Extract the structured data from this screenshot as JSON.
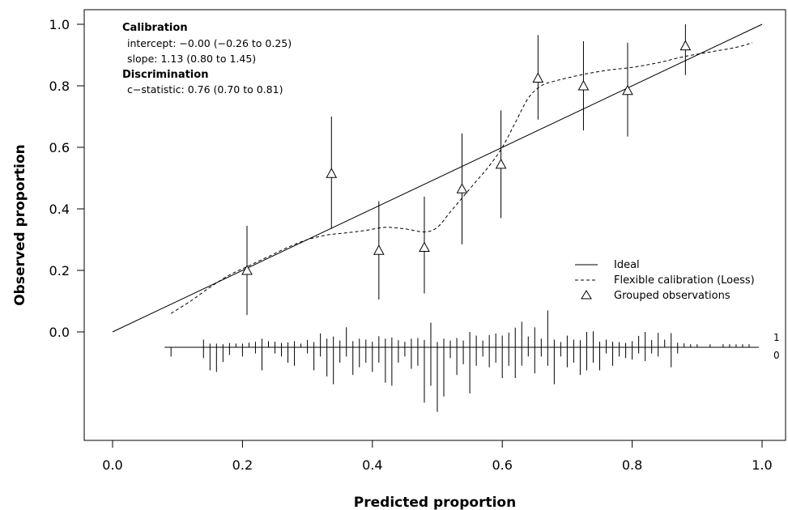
{
  "chart_data": {
    "type": "scatter",
    "xlabel": "Predicted proportion",
    "ylabel": "Observed proportion",
    "xlim": [
      0.0,
      1.0
    ],
    "ylim": [
      0.0,
      1.0
    ],
    "x_ticks": [
      "0.0",
      "0.2",
      "0.4",
      "0.6",
      "0.8",
      "1.0"
    ],
    "y_ticks": [
      "0.0",
      "0.2",
      "0.4",
      "0.6",
      "0.8",
      "1.0"
    ],
    "grid": false,
    "legend_position": "bottom-right",
    "annotation": {
      "calibration_heading": "Calibration",
      "intercept": "intercept: −0.00 (−0.26 to 0.25)",
      "slope": "slope: 1.13 (0.80 to 1.45)",
      "discrimination_heading": "Discrimination",
      "c_statistic": "c−statistic: 0.76 (0.70 to 0.81)"
    },
    "legend": {
      "ideal": "Ideal",
      "loess": "Flexible calibration (Loess)",
      "grouped": "Grouped observations"
    },
    "spike_labels": {
      "top": "1",
      "bottom": "0"
    },
    "ideal_line": {
      "x": [
        0.0,
        1.0
      ],
      "y": [
        0.0,
        1.0
      ]
    },
    "loess_curve": {
      "x": [
        0.09,
        0.12,
        0.15,
        0.18,
        0.21,
        0.24,
        0.27,
        0.3,
        0.33,
        0.36,
        0.39,
        0.42,
        0.45,
        0.48,
        0.5,
        0.52,
        0.54,
        0.56,
        0.58,
        0.6,
        0.62,
        0.64,
        0.66,
        0.68,
        0.72,
        0.76,
        0.8,
        0.84,
        0.88,
        0.92,
        0.96,
        0.985
      ],
      "y": [
        0.06,
        0.1,
        0.145,
        0.185,
        0.215,
        0.245,
        0.275,
        0.3,
        0.315,
        0.322,
        0.33,
        0.34,
        0.335,
        0.325,
        0.34,
        0.39,
        0.44,
        0.49,
        0.54,
        0.6,
        0.68,
        0.76,
        0.8,
        0.815,
        0.835,
        0.85,
        0.86,
        0.875,
        0.895,
        0.91,
        0.925,
        0.94
      ]
    },
    "grouped_observations": [
      {
        "x": 0.207,
        "y": 0.2,
        "lower": 0.055,
        "upper": 0.345
      },
      {
        "x": 0.337,
        "y": 0.515,
        "lower": 0.335,
        "upper": 0.7
      },
      {
        "x": 0.41,
        "y": 0.265,
        "lower": 0.105,
        "upper": 0.425
      },
      {
        "x": 0.48,
        "y": 0.275,
        "lower": 0.125,
        "upper": 0.44
      },
      {
        "x": 0.538,
        "y": 0.465,
        "lower": 0.285,
        "upper": 0.645
      },
      {
        "x": 0.598,
        "y": 0.545,
        "lower": 0.37,
        "upper": 0.72
      },
      {
        "x": 0.655,
        "y": 0.825,
        "lower": 0.69,
        "upper": 0.965
      },
      {
        "x": 0.725,
        "y": 0.8,
        "lower": 0.655,
        "upper": 0.945
      },
      {
        "x": 0.793,
        "y": 0.785,
        "lower": 0.635,
        "upper": 0.94
      },
      {
        "x": 0.882,
        "y": 0.93,
        "lower": 0.835,
        "upper": 1.0
      }
    ],
    "spike_histogram": {
      "outcome_1": {
        "x": [
          0.14,
          0.15,
          0.16,
          0.17,
          0.18,
          0.19,
          0.2,
          0.21,
          0.22,
          0.23,
          0.24,
          0.25,
          0.26,
          0.27,
          0.28,
          0.29,
          0.3,
          0.31,
          0.32,
          0.33,
          0.34,
          0.35,
          0.36,
          0.37,
          0.38,
          0.39,
          0.4,
          0.41,
          0.42,
          0.43,
          0.44,
          0.45,
          0.46,
          0.47,
          0.48,
          0.49,
          0.5,
          0.51,
          0.52,
          0.53,
          0.54,
          0.55,
          0.56,
          0.57,
          0.58,
          0.59,
          0.6,
          0.61,
          0.62,
          0.63,
          0.64,
          0.65,
          0.66,
          0.67,
          0.68,
          0.69,
          0.7,
          0.71,
          0.72,
          0.73,
          0.74,
          0.75,
          0.76,
          0.77,
          0.78,
          0.79,
          0.8,
          0.81,
          0.82,
          0.83,
          0.84,
          0.85,
          0.86,
          0.87,
          0.88,
          0.89,
          0.9,
          0.92,
          0.94,
          0.95,
          0.96,
          0.97,
          0.98
        ],
        "h": [
          0.025,
          0.012,
          0.012,
          0.01,
          0.014,
          0.012,
          0.012,
          0.015,
          0.018,
          0.028,
          0.02,
          0.018,
          0.014,
          0.016,
          0.02,
          0.012,
          0.024,
          0.017,
          0.045,
          0.028,
          0.035,
          0.022,
          0.065,
          0.02,
          0.028,
          0.025,
          0.018,
          0.036,
          0.028,
          0.032,
          0.023,
          0.018,
          0.028,
          0.03,
          0.024,
          0.08,
          0.017,
          0.028,
          0.022,
          0.03,
          0.022,
          0.05,
          0.038,
          0.022,
          0.04,
          0.045,
          0.038,
          0.048,
          0.064,
          0.083,
          0.035,
          0.065,
          0.028,
          0.12,
          0.025,
          0.017,
          0.038,
          0.025,
          0.023,
          0.05,
          0.052,
          0.018,
          0.025,
          0.018,
          0.017,
          0.014,
          0.02,
          0.037,
          0.05,
          0.024,
          0.047,
          0.025,
          0.046,
          0.015,
          0.013,
          0.01,
          0.01,
          0.01,
          0.01,
          0.01,
          0.01,
          0.01,
          0.01
        ]
      },
      "outcome_0": {
        "x": [
          0.09,
          0.14,
          0.15,
          0.16,
          0.17,
          0.18,
          0.2,
          0.22,
          0.23,
          0.25,
          0.26,
          0.27,
          0.28,
          0.3,
          0.31,
          0.32,
          0.33,
          0.34,
          0.35,
          0.36,
          0.37,
          0.38,
          0.39,
          0.4,
          0.41,
          0.42,
          0.43,
          0.44,
          0.45,
          0.46,
          0.47,
          0.48,
          0.49,
          0.5,
          0.51,
          0.52,
          0.53,
          0.54,
          0.55,
          0.56,
          0.57,
          0.58,
          0.59,
          0.6,
          0.61,
          0.62,
          0.63,
          0.64,
          0.65,
          0.66,
          0.67,
          0.68,
          0.69,
          0.7,
          0.71,
          0.72,
          0.73,
          0.74,
          0.75,
          0.76,
          0.77,
          0.78,
          0.79,
          0.8,
          0.81,
          0.82,
          0.83,
          0.84,
          0.86,
          0.87
        ],
        "h": [
          0.03,
          0.035,
          0.075,
          0.08,
          0.048,
          0.025,
          0.03,
          0.02,
          0.075,
          0.02,
          0.03,
          0.05,
          0.06,
          0.02,
          0.075,
          0.03,
          0.095,
          0.12,
          0.05,
          0.03,
          0.09,
          0.065,
          0.05,
          0.08,
          0.05,
          0.115,
          0.125,
          0.05,
          0.03,
          0.07,
          0.06,
          0.18,
          0.125,
          0.21,
          0.16,
          0.035,
          0.09,
          0.055,
          0.15,
          0.06,
          0.03,
          0.065,
          0.05,
          0.1,
          0.06,
          0.1,
          0.06,
          0.03,
          0.085,
          0.03,
          0.06,
          0.12,
          0.03,
          0.065,
          0.05,
          0.09,
          0.075,
          0.05,
          0.075,
          0.02,
          0.06,
          0.03,
          0.035,
          0.04,
          0.02,
          0.045,
          0.02,
          0.03,
          0.065,
          0.02
        ]
      }
    }
  }
}
